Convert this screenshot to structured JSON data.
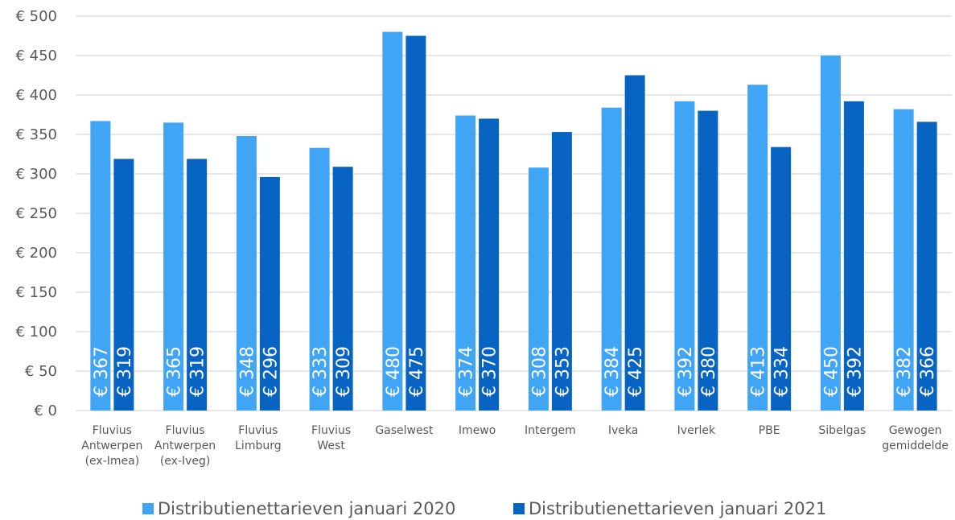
{
  "chart_data": {
    "type": "bar",
    "categories": [
      [
        "Fluvius",
        "Antwerpen",
        "(ex-Imea)"
      ],
      [
        "Fluvius",
        "Antwerpen",
        "(ex-Iveg)"
      ],
      [
        "Fluvius",
        "Limburg"
      ],
      [
        "Fluvius",
        "West"
      ],
      [
        "Gaselwest"
      ],
      [
        "Imewo"
      ],
      [
        "Intergem"
      ],
      [
        "Iveka"
      ],
      [
        "Iverlek"
      ],
      [
        "PBE"
      ],
      [
        "Sibelgas"
      ],
      [
        "Gewogen",
        "gemiddelde"
      ]
    ],
    "series": [
      {
        "name": "Distributienettarieven januari 2020",
        "color": "#41a5f5",
        "values": [
          367,
          365,
          348,
          333,
          480,
          374,
          308,
          384,
          392,
          413,
          450,
          382
        ],
        "labels": [
          "€ 367",
          "€ 365",
          "€ 348",
          "€ 333",
          "€ 480",
          "€ 374",
          "€ 308",
          "€ 384",
          "€ 392",
          "€ 413",
          "€ 450",
          "€ 382"
        ]
      },
      {
        "name": "Distributienettarieven januari 2021",
        "color": "#0764c2",
        "values": [
          319,
          319,
          296,
          309,
          475,
          370,
          353,
          425,
          380,
          334,
          392,
          366
        ],
        "labels": [
          "€ 319",
          "€ 319",
          "€ 296",
          "€ 309",
          "€ 475",
          "€ 370",
          "€ 353",
          "€ 425",
          "€ 380",
          "€ 334",
          "€ 392",
          "€ 366"
        ]
      }
    ],
    "y_ticks": [
      0,
      50,
      100,
      150,
      200,
      250,
      300,
      350,
      400,
      450,
      500
    ],
    "y_tick_labels": [
      "€ 0",
      "€ 50",
      "€ 100",
      "€ 150",
      "€ 200",
      "€ 250",
      "€ 300",
      "€ 350",
      "€ 400",
      "€ 450",
      "€ 500"
    ],
    "ylim": [
      0,
      500
    ],
    "grid": true,
    "grid_color": "#d9d9d9",
    "legend_position": "bottom",
    "title": "",
    "xlabel": "",
    "ylabel": ""
  }
}
